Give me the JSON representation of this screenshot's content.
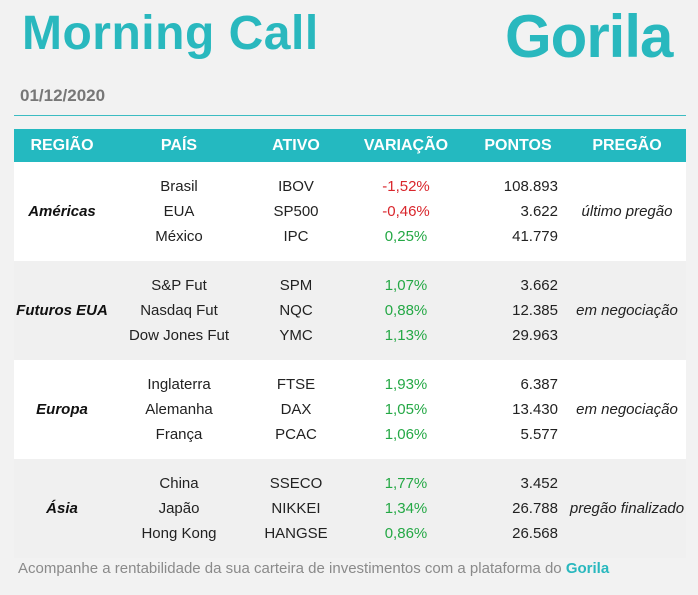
{
  "header": {
    "title": "Morning Call",
    "logo": "Gorila",
    "date": "01/12/2020"
  },
  "columns": {
    "region": "REGIÃO",
    "country": "PAÍS",
    "asset": "ATIVO",
    "variation": "VARIAÇÃO",
    "points": "PONTOS",
    "pregao": "PREGÃO"
  },
  "groups": [
    {
      "region": "Américas",
      "status": "último pregão",
      "rows": [
        {
          "country": "Brasil",
          "asset": "IBOV",
          "variation": "-1,52%",
          "points": "108.893"
        },
        {
          "country": "EUA",
          "asset": "SP500",
          "variation": "-0,46%",
          "points": "3.622"
        },
        {
          "country": "México",
          "asset": "IPC",
          "variation": "0,25%",
          "points": "41.779"
        }
      ]
    },
    {
      "region": "Futuros EUA",
      "status": "em negociação",
      "rows": [
        {
          "country": "S&P Fut",
          "asset": "SPM",
          "variation": "1,07%",
          "points": "3.662"
        },
        {
          "country": "Nasdaq Fut",
          "asset": "NQC",
          "variation": "0,88%",
          "points": "12.385"
        },
        {
          "country": "Dow Jones Fut",
          "asset": "YMC",
          "variation": "1,13%",
          "points": "29.963"
        }
      ]
    },
    {
      "region": "Europa",
      "status": "em negociação",
      "rows": [
        {
          "country": "Inglaterra",
          "asset": "FTSE",
          "variation": "1,93%",
          "points": "6.387"
        },
        {
          "country": "Alemanha",
          "asset": "DAX",
          "variation": "1,05%",
          "points": "13.430"
        },
        {
          "country": "França",
          "asset": "PCAC",
          "variation": "1,06%",
          "points": "5.577"
        }
      ]
    },
    {
      "region": "Ásia",
      "status": "pregão finalizado",
      "rows": [
        {
          "country": "China",
          "asset": "SSECO",
          "variation": "1,77%",
          "points": "3.452"
        },
        {
          "country": "Japão",
          "asset": "NIKKEI",
          "variation": "1,34%",
          "points": "26.788"
        },
        {
          "country": "Hong Kong",
          "asset": "HANGSE",
          "variation": "0,86%",
          "points": "26.568"
        }
      ]
    }
  ],
  "footer": {
    "text": "Acompanhe a rentabilidade da sua carteira de investimentos com a plataforma do",
    "brand": "Gorila"
  },
  "colors": {
    "accent": "#29b8be",
    "negative": "#d9262c",
    "positive": "#24a845"
  }
}
